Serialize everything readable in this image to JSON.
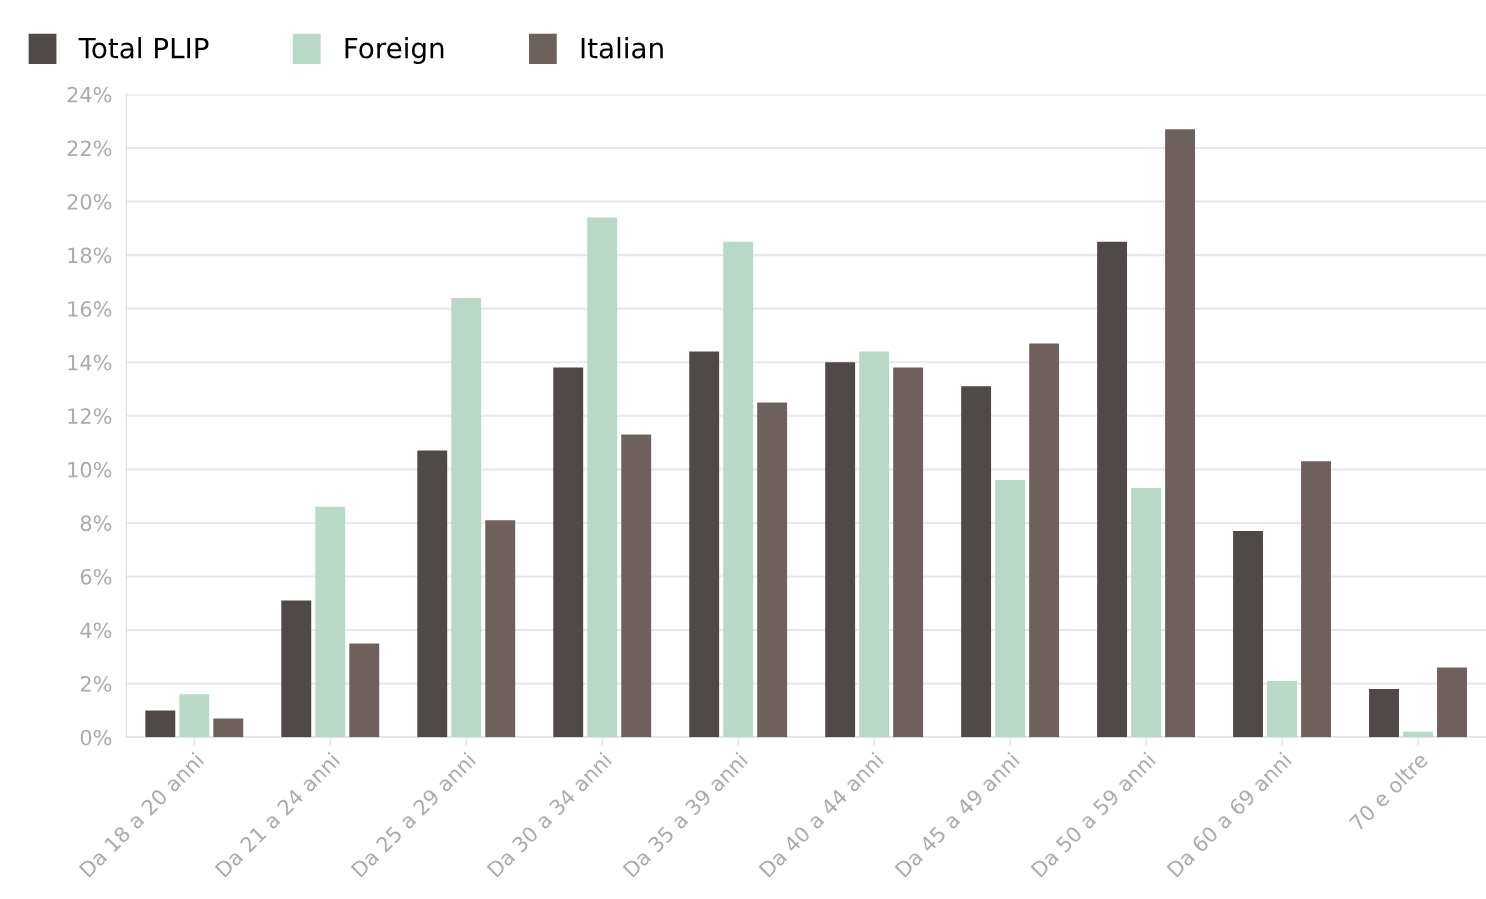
{
  "chart_data": {
    "type": "bar",
    "categories": [
      "Da 18 a 20 anni",
      "Da 21 a 24 anni",
      "Da 25 a 29 anni",
      "Da 30 a 34 anni",
      "Da 35 a 39 anni",
      "Da 40 a 44 anni",
      "Da 45 a 49 anni",
      "Da 50 a 59 anni",
      "Da 60 a 69 anni",
      "70 e oltre"
    ],
    "series": [
      {
        "name": "Total PLIP",
        "color": "#4f4a48",
        "values": [
          1.0,
          5.1,
          10.7,
          13.8,
          14.4,
          14.0,
          13.1,
          18.5,
          7.7,
          1.8
        ]
      },
      {
        "name": "Foreign",
        "color": "#b8d8c8",
        "values": [
          1.6,
          8.6,
          16.4,
          19.4,
          18.5,
          14.4,
          9.6,
          9.3,
          2.1,
          0.2
        ]
      },
      {
        "name": "Italian",
        "color": "#6e605c",
        "values": [
          0.7,
          3.5,
          8.1,
          11.3,
          12.5,
          13.8,
          14.7,
          22.7,
          10.3,
          2.6
        ]
      }
    ],
    "ylim": [
      0,
      24
    ],
    "yticks": [
      {
        "value": 0,
        "label": "0%"
      },
      {
        "value": 2,
        "label": "2%"
      },
      {
        "value": 4,
        "label": "4%"
      },
      {
        "value": 6,
        "label": "6%"
      },
      {
        "value": 8,
        "label": "8%"
      },
      {
        "value": 10,
        "label": "10%"
      },
      {
        "value": 12,
        "label": "12%"
      },
      {
        "value": 14,
        "label": "14%"
      },
      {
        "value": 16,
        "label": "16%"
      },
      {
        "value": 18,
        "label": "18%"
      },
      {
        "value": 20,
        "label": "20%"
      },
      {
        "value": 22,
        "label": "22%"
      },
      {
        "value": 24,
        "label": "24%"
      }
    ],
    "grid": "y",
    "legend": "top left"
  }
}
